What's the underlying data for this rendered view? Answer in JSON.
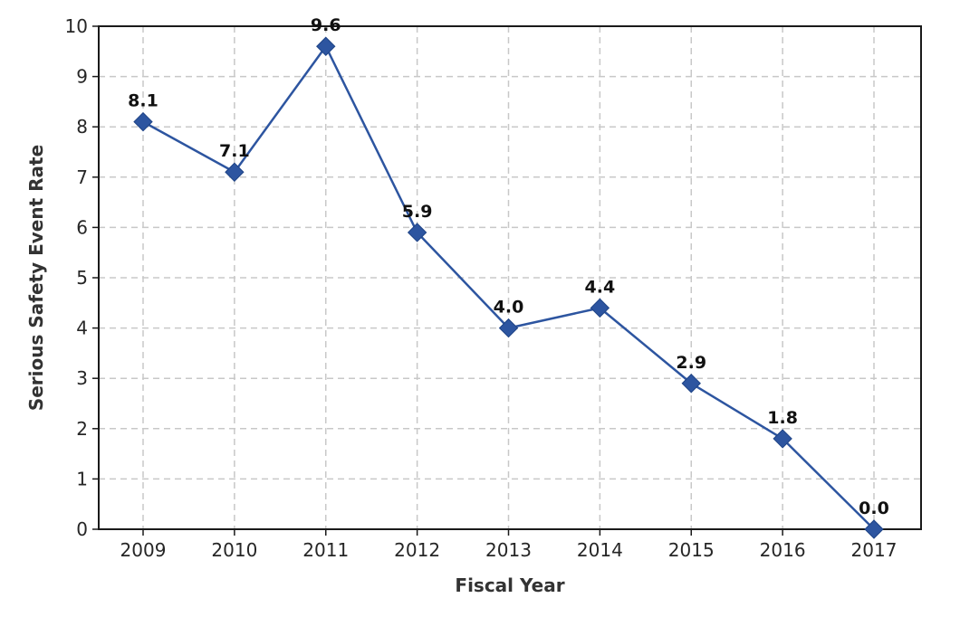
{
  "chart_data": {
    "type": "line",
    "title": "",
    "xlabel": "Fiscal Year",
    "ylabel": "Serious Safety Event Rate",
    "categories": [
      "2009",
      "2010",
      "2011",
      "2012",
      "2013",
      "2014",
      "2015",
      "2016",
      "2017"
    ],
    "series": [
      {
        "values": [
          8.1,
          7.1,
          9.6,
          5.9,
          4.0,
          4.4,
          2.9,
          1.8,
          0.0
        ],
        "labels": [
          "8.1",
          "7.1",
          "9.6",
          "5.9",
          "4.0",
          "4.4",
          "2.9",
          "1.8",
          "0.0"
        ],
        "color": "#2d55a0",
        "marker": "diamond"
      }
    ],
    "yticks": [
      "0",
      "1",
      "2",
      "3",
      "4",
      "5",
      "6",
      "7",
      "8",
      "9",
      "10"
    ],
    "ylim": [
      0,
      10
    ],
    "grid": true,
    "grid_style": "dashed",
    "legend": "none"
  }
}
